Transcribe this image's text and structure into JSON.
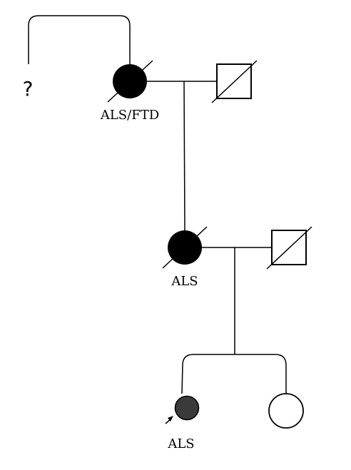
{
  "colors": {
    "affected": "#000000",
    "proband_fill": "#3a3a3a",
    "unaffected": "#ffffff",
    "line": "#000000"
  },
  "generation1": {
    "unknown_sibling_label": "?",
    "mother": {
      "label": "ALS/FTD",
      "affected": true,
      "deceased": true,
      "sex": "female"
    },
    "father": {
      "affected": false,
      "deceased": true,
      "sex": "male"
    }
  },
  "generation2": {
    "daughter": {
      "label": "ALS",
      "affected": true,
      "deceased": true,
      "sex": "female"
    },
    "spouse": {
      "affected": false,
      "deceased": true,
      "sex": "male"
    }
  },
  "generation3": {
    "proband": {
      "label": "ALS",
      "affected": true,
      "deceased": false,
      "sex": "female",
      "proband": true
    },
    "sister": {
      "affected": false,
      "deceased": false,
      "sex": "female"
    }
  }
}
